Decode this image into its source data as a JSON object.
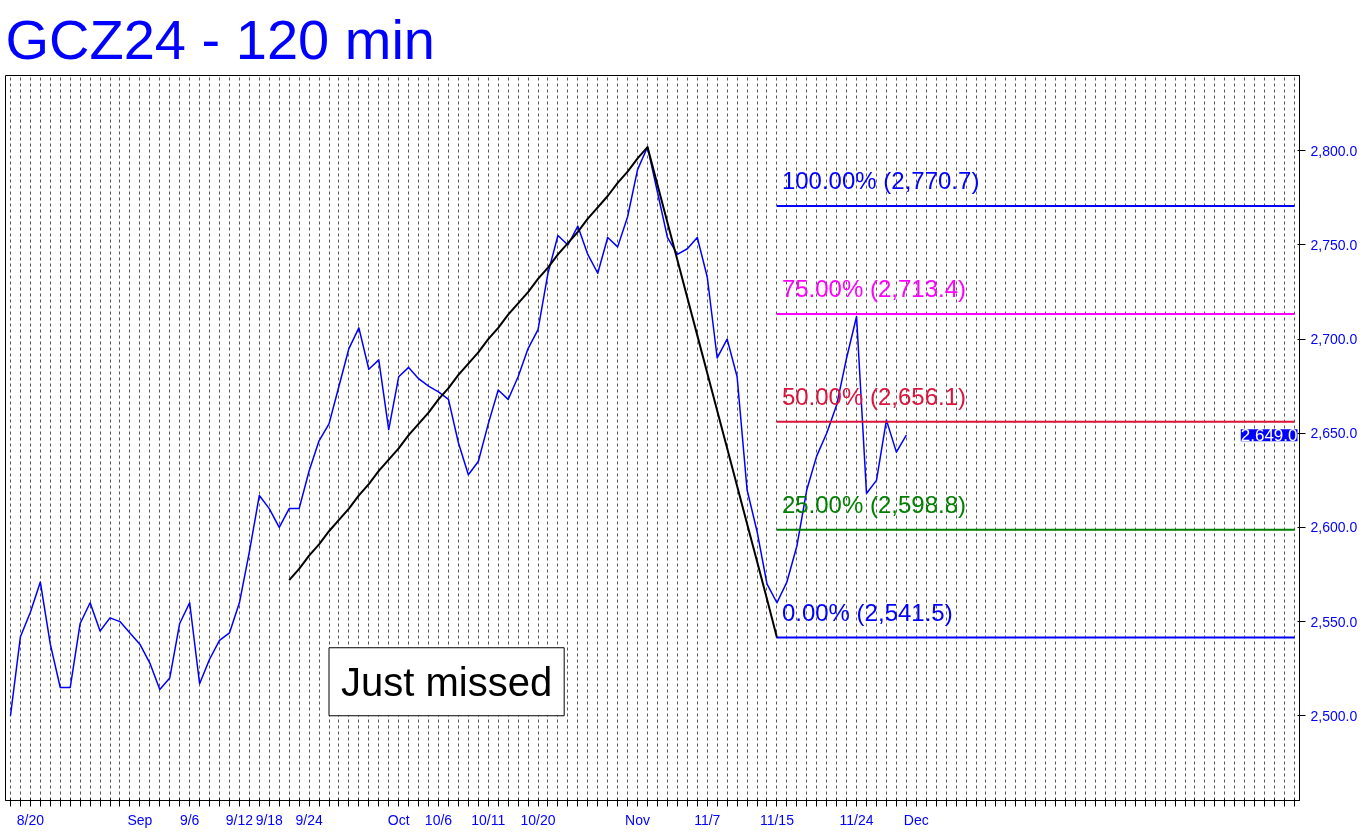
{
  "chart_data": {
    "type": "line",
    "title": "GCZ24 - 120 min",
    "ylim": [
      2455,
      2840
    ],
    "yticks": [
      {
        "value": 2500,
        "label": "2,500.0"
      },
      {
        "value": 2550,
        "label": "2,550.0"
      },
      {
        "value": 2600,
        "label": "2,600.0"
      },
      {
        "value": 2650,
        "label": "2,650.0"
      },
      {
        "value": 2700,
        "label": "2,700.0"
      },
      {
        "value": 2750,
        "label": "2,750.0"
      },
      {
        "value": 2800,
        "label": "2,800.0"
      }
    ],
    "categories": [
      null,
      null,
      "8/20",
      null,
      null,
      null,
      null,
      null,
      null,
      null,
      null,
      null,
      null,
      "Sep",
      null,
      null,
      null,
      null,
      "9/6",
      null,
      null,
      null,
      null,
      "9/12",
      null,
      null,
      "9/18",
      null,
      null,
      null,
      "9/24",
      null,
      null,
      null,
      null,
      null,
      null,
      null,
      null,
      "Oct",
      null,
      null,
      null,
      "10/6",
      null,
      null,
      null,
      null,
      "10/11",
      null,
      null,
      null,
      null,
      "10/20",
      null,
      null,
      null,
      null,
      null,
      null,
      null,
      null,
      null,
      "Nov",
      null,
      null,
      null,
      null,
      null,
      null,
      "11/7",
      null,
      null,
      null,
      null,
      null,
      null,
      "11/15",
      null,
      null,
      null,
      null,
      null,
      null,
      null,
      "11/24",
      null,
      null,
      null,
      null,
      null,
      "Dec",
      null,
      null,
      null,
      null,
      null,
      null,
      null,
      null,
      null,
      null,
      null,
      null,
      null,
      null,
      null,
      null,
      null,
      null,
      null,
      null,
      null,
      null,
      null,
      null,
      null,
      null,
      null,
      null,
      null,
      null,
      null,
      null,
      null,
      null,
      null,
      null,
      null,
      null
    ],
    "grid": "x",
    "series": [
      {
        "color": "#0000ff",
        "values": [
          2500,
          2542,
          2555,
          2571,
          2538,
          2515,
          2515,
          2549,
          2560,
          2545,
          2552,
          2550,
          2544,
          2538,
          2528,
          2514,
          2520,
          2549,
          2560,
          2517,
          2530,
          2540,
          2544,
          2560,
          2587,
          2617,
          2610,
          2600,
          2610,
          2610,
          2630,
          2646,
          2655,
          2675,
          2695,
          2706,
          2684,
          2689,
          2652,
          2680,
          2685,
          2679,
          2675,
          2672,
          2668,
          2645,
          2628,
          2635,
          2655,
          2673,
          2668,
          2680,
          2695,
          2705,
          2735,
          2755,
          2750,
          2760,
          2745,
          2735,
          2754,
          2749,
          2765,
          2790,
          2802,
          2778,
          2754,
          2745,
          2748,
          2754,
          2733,
          2690,
          2700,
          2680,
          2620,
          2598,
          2570,
          2560,
          2571,
          2590,
          2620,
          2638,
          2650,
          2665,
          2690,
          2712,
          2618,
          2625,
          2657,
          2640,
          2649,
          null,
          null,
          null,
          null,
          null,
          null,
          null,
          null,
          null,
          null,
          null,
          null,
          null,
          null,
          null,
          null,
          null,
          null,
          null,
          null,
          null,
          null,
          null,
          null,
          null,
          null,
          null,
          null,
          null,
          null,
          null,
          null,
          null,
          null,
          null,
          null,
          null,
          null,
          null
        ]
      },
      {
        "color": "#000000",
        "values": [
          null,
          null,
          null,
          null,
          null,
          null,
          null,
          null,
          null,
          null,
          null,
          null,
          null,
          null,
          null,
          null,
          null,
          null,
          null,
          null,
          null,
          null,
          null,
          null,
          null,
          null,
          null,
          null,
          2572,
          2578,
          2585,
          2591,
          2598,
          2604,
          2610,
          2617,
          2623,
          2630,
          2636,
          2642,
          2649,
          2655,
          2661,
          2668,
          2674,
          2681,
          2687,
          2693,
          2700,
          2706,
          2713,
          2719,
          2725,
          2732,
          2738,
          2745,
          2751,
          2757,
          2764,
          2770,
          2776,
          2783,
          2789,
          2796,
          2802,
          2782,
          2762,
          2742,
          2722,
          2702,
          2682,
          2662,
          2642,
          2622,
          2602,
          2582,
          2562,
          2541.5,
          null,
          null,
          null,
          null,
          null,
          null,
          null,
          null,
          null,
          null,
          null,
          null,
          null,
          null,
          null,
          null,
          null,
          null,
          null,
          null,
          null,
          null,
          null,
          null,
          null,
          null,
          null,
          null,
          null,
          null,
          null,
          null,
          null,
          null,
          null,
          null,
          null,
          null,
          null,
          null,
          null,
          null,
          null,
          null,
          null,
          null,
          null,
          null,
          null,
          null,
          null,
          null
        ]
      },
      {
        "color": "#0000ff",
        "values": [
          null,
          null,
          null,
          null,
          null,
          null,
          null,
          null,
          null,
          null,
          null,
          null,
          null,
          null,
          null,
          null,
          null,
          null,
          null,
          null,
          null,
          null,
          null,
          null,
          null,
          null,
          null,
          null,
          null,
          null,
          null,
          null,
          null,
          null,
          null,
          null,
          null,
          null,
          null,
          null,
          null,
          null,
          null,
          null,
          null,
          null,
          null,
          null,
          null,
          null,
          null,
          null,
          null,
          null,
          null,
          null,
          null,
          null,
          null,
          null,
          null,
          null,
          null,
          null,
          null,
          null,
          null,
          null,
          null,
          null,
          null,
          null,
          null,
          null,
          null,
          null,
          null,
          2770.7,
          2770.7,
          2770.7,
          2770.7,
          2770.7,
          2770.7,
          2770.7,
          2770.7,
          2770.7,
          2770.7,
          2770.7,
          2770.7,
          2770.7,
          2770.7,
          2770.7,
          2770.7,
          2770.7,
          2770.7,
          2770.7,
          2770.7,
          2770.7,
          2770.7,
          2770.7,
          2770.7,
          2770.7,
          2770.7,
          2770.7,
          2770.7,
          2770.7,
          2770.7,
          2770.7,
          2770.7,
          2770.7,
          2770.7,
          2770.7,
          2770.7,
          2770.7,
          2770.7,
          2770.7,
          2770.7,
          2770.7,
          2770.7,
          2770.7,
          2770.7,
          2770.7,
          2770.7,
          2770.7,
          2770.7,
          2770.7,
          2770.7,
          2770.7,
          2770.7,
          2770.7
        ]
      },
      {
        "color": "#ff00ff",
        "values": [
          null,
          null,
          null,
          null,
          null,
          null,
          null,
          null,
          null,
          null,
          null,
          null,
          null,
          null,
          null,
          null,
          null,
          null,
          null,
          null,
          null,
          null,
          null,
          null,
          null,
          null,
          null,
          null,
          null,
          null,
          null,
          null,
          null,
          null,
          null,
          null,
          null,
          null,
          null,
          null,
          null,
          null,
          null,
          null,
          null,
          null,
          null,
          null,
          null,
          null,
          null,
          null,
          null,
          null,
          null,
          null,
          null,
          null,
          null,
          null,
          null,
          null,
          null,
          null,
          null,
          null,
          null,
          null,
          null,
          null,
          null,
          null,
          null,
          null,
          null,
          null,
          null,
          2713.4,
          2713.4,
          2713.4,
          2713.4,
          2713.4,
          2713.4,
          2713.4,
          2713.4,
          2713.4,
          2713.4,
          2713.4,
          2713.4,
          2713.4,
          2713.4,
          2713.4,
          2713.4,
          2713.4,
          2713.4,
          2713.4,
          2713.4,
          2713.4,
          2713.4,
          2713.4,
          2713.4,
          2713.4,
          2713.4,
          2713.4,
          2713.4,
          2713.4,
          2713.4,
          2713.4,
          2713.4,
          2713.4,
          2713.4,
          2713.4,
          2713.4,
          2713.4,
          2713.4,
          2713.4,
          2713.4,
          2713.4,
          2713.4,
          2713.4,
          2713.4,
          2713.4,
          2713.4,
          2713.4,
          2713.4,
          2713.4,
          2713.4,
          2713.4,
          2713.4,
          2713.4
        ]
      },
      {
        "color": "#dc143c",
        "values": [
          null,
          null,
          null,
          null,
          null,
          null,
          null,
          null,
          null,
          null,
          null,
          null,
          null,
          null,
          null,
          null,
          null,
          null,
          null,
          null,
          null,
          null,
          null,
          null,
          null,
          null,
          null,
          null,
          null,
          null,
          null,
          null,
          null,
          null,
          null,
          null,
          null,
          null,
          null,
          null,
          null,
          null,
          null,
          null,
          null,
          null,
          null,
          null,
          null,
          null,
          null,
          null,
          null,
          null,
          null,
          null,
          null,
          null,
          null,
          null,
          null,
          null,
          null,
          null,
          null,
          null,
          null,
          null,
          null,
          null,
          null,
          null,
          null,
          null,
          null,
          null,
          null,
          2656.1,
          2656.1,
          2656.1,
          2656.1,
          2656.1,
          2656.1,
          2656.1,
          2656.1,
          2656.1,
          2656.1,
          2656.1,
          2656.1,
          2656.1,
          2656.1,
          2656.1,
          2656.1,
          2656.1,
          2656.1,
          2656.1,
          2656.1,
          2656.1,
          2656.1,
          2656.1,
          2656.1,
          2656.1,
          2656.1,
          2656.1,
          2656.1,
          2656.1,
          2656.1,
          2656.1,
          2656.1,
          2656.1,
          2656.1,
          2656.1,
          2656.1,
          2656.1,
          2656.1,
          2656.1,
          2656.1,
          2656.1,
          2656.1,
          2656.1,
          2656.1,
          2656.1,
          2656.1,
          2656.1,
          2656.1,
          2656.1,
          2656.1,
          2656.1,
          2656.1,
          2656.1
        ]
      },
      {
        "color": "#008000",
        "values": [
          null,
          null,
          null,
          null,
          null,
          null,
          null,
          null,
          null,
          null,
          null,
          null,
          null,
          null,
          null,
          null,
          null,
          null,
          null,
          null,
          null,
          null,
          null,
          null,
          null,
          null,
          null,
          null,
          null,
          null,
          null,
          null,
          null,
          null,
          null,
          null,
          null,
          null,
          null,
          null,
          null,
          null,
          null,
          null,
          null,
          null,
          null,
          null,
          null,
          null,
          null,
          null,
          null,
          null,
          null,
          null,
          null,
          null,
          null,
          null,
          null,
          null,
          null,
          null,
          null,
          null,
          null,
          null,
          null,
          null,
          null,
          null,
          null,
          null,
          null,
          null,
          null,
          2598.8,
          2598.8,
          2598.8,
          2598.8,
          2598.8,
          2598.8,
          2598.8,
          2598.8,
          2598.8,
          2598.8,
          2598.8,
          2598.8,
          2598.8,
          2598.8,
          2598.8,
          2598.8,
          2598.8,
          2598.8,
          2598.8,
          2598.8,
          2598.8,
          2598.8,
          2598.8,
          2598.8,
          2598.8,
          2598.8,
          2598.8,
          2598.8,
          2598.8,
          2598.8,
          2598.8,
          2598.8,
          2598.8,
          2598.8,
          2598.8,
          2598.8,
          2598.8,
          2598.8,
          2598.8,
          2598.8,
          2598.8,
          2598.8,
          2598.8,
          2598.8,
          2598.8,
          2598.8,
          2598.8,
          2598.8,
          2598.8,
          2598.8,
          2598.8,
          2598.8,
          2598.8
        ]
      },
      {
        "color": "#0000ff",
        "values": [
          null,
          null,
          null,
          null,
          null,
          null,
          null,
          null,
          null,
          null,
          null,
          null,
          null,
          null,
          null,
          null,
          null,
          null,
          null,
          null,
          null,
          null,
          null,
          null,
          null,
          null,
          null,
          null,
          null,
          null,
          null,
          null,
          null,
          null,
          null,
          null,
          null,
          null,
          null,
          null,
          null,
          null,
          null,
          null,
          null,
          null,
          null,
          null,
          null,
          null,
          null,
          null,
          null,
          null,
          null,
          null,
          null,
          null,
          null,
          null,
          null,
          null,
          null,
          null,
          null,
          null,
          null,
          null,
          null,
          null,
          null,
          null,
          null,
          null,
          null,
          null,
          null,
          2541.5,
          2541.5,
          2541.5,
          2541.5,
          2541.5,
          2541.5,
          2541.5,
          2541.5,
          2541.5,
          2541.5,
          2541.5,
          2541.5,
          2541.5,
          2541.5,
          2541.5,
          2541.5,
          2541.5,
          2541.5,
          2541.5,
          2541.5,
          2541.5,
          2541.5,
          2541.5,
          2541.5,
          2541.5,
          2541.5,
          2541.5,
          2541.5,
          2541.5,
          2541.5,
          2541.5,
          2541.5,
          2541.5,
          2541.5,
          2541.5,
          2541.5,
          2541.5,
          2541.5,
          2541.5,
          2541.5,
          2541.5,
          2541.5,
          2541.5,
          2541.5,
          2541.5,
          2541.5,
          2541.5,
          2541.5,
          2541.5,
          2541.5,
          2541.5,
          2541.5,
          2541.5
        ]
      }
    ],
    "annotations": [
      {
        "text": "100.00% (2,770.7)",
        "y": 2770.7
      },
      {
        "text": "75.00% (2,713.4)",
        "y": 2713.4
      },
      {
        "text": "50.00% (2,656.1)",
        "y": 2656.1
      },
      {
        "text": "25.00% (2,598.8)",
        "y": 2598.8
      },
      {
        "text": "0.00% (2,541.5)",
        "y": 2541.5
      },
      "2,649.0",
      "Just missed"
    ]
  }
}
